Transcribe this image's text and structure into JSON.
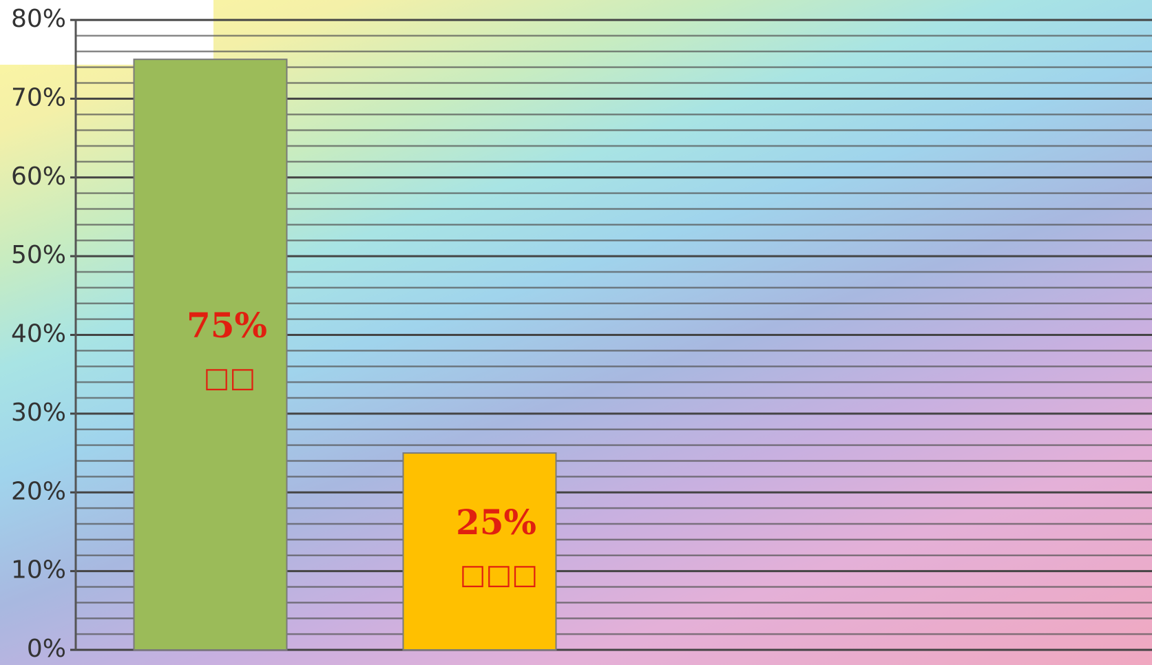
{
  "chart_data": {
    "type": "bar",
    "categories": [
      "□□",
      "□□□"
    ],
    "values": [
      75,
      25
    ],
    "value_labels": [
      "75%",
      "25%"
    ],
    "colors": [
      "#9bbb59",
      "#ffc000"
    ],
    "label_color": "#e02010",
    "ylim": [
      0,
      80
    ],
    "yticks": [
      {
        "value": 0,
        "label": "0%"
      },
      {
        "value": 10,
        "label": "10%"
      },
      {
        "value": 20,
        "label": "20%"
      },
      {
        "value": 30,
        "label": "30%"
      },
      {
        "value": 40,
        "label": "40%"
      },
      {
        "value": 50,
        "label": "50%"
      },
      {
        "value": 60,
        "label": "60%"
      },
      {
        "value": 70,
        "label": "70%"
      },
      {
        "value": 80,
        "label": "80%"
      }
    ],
    "grid": true
  }
}
